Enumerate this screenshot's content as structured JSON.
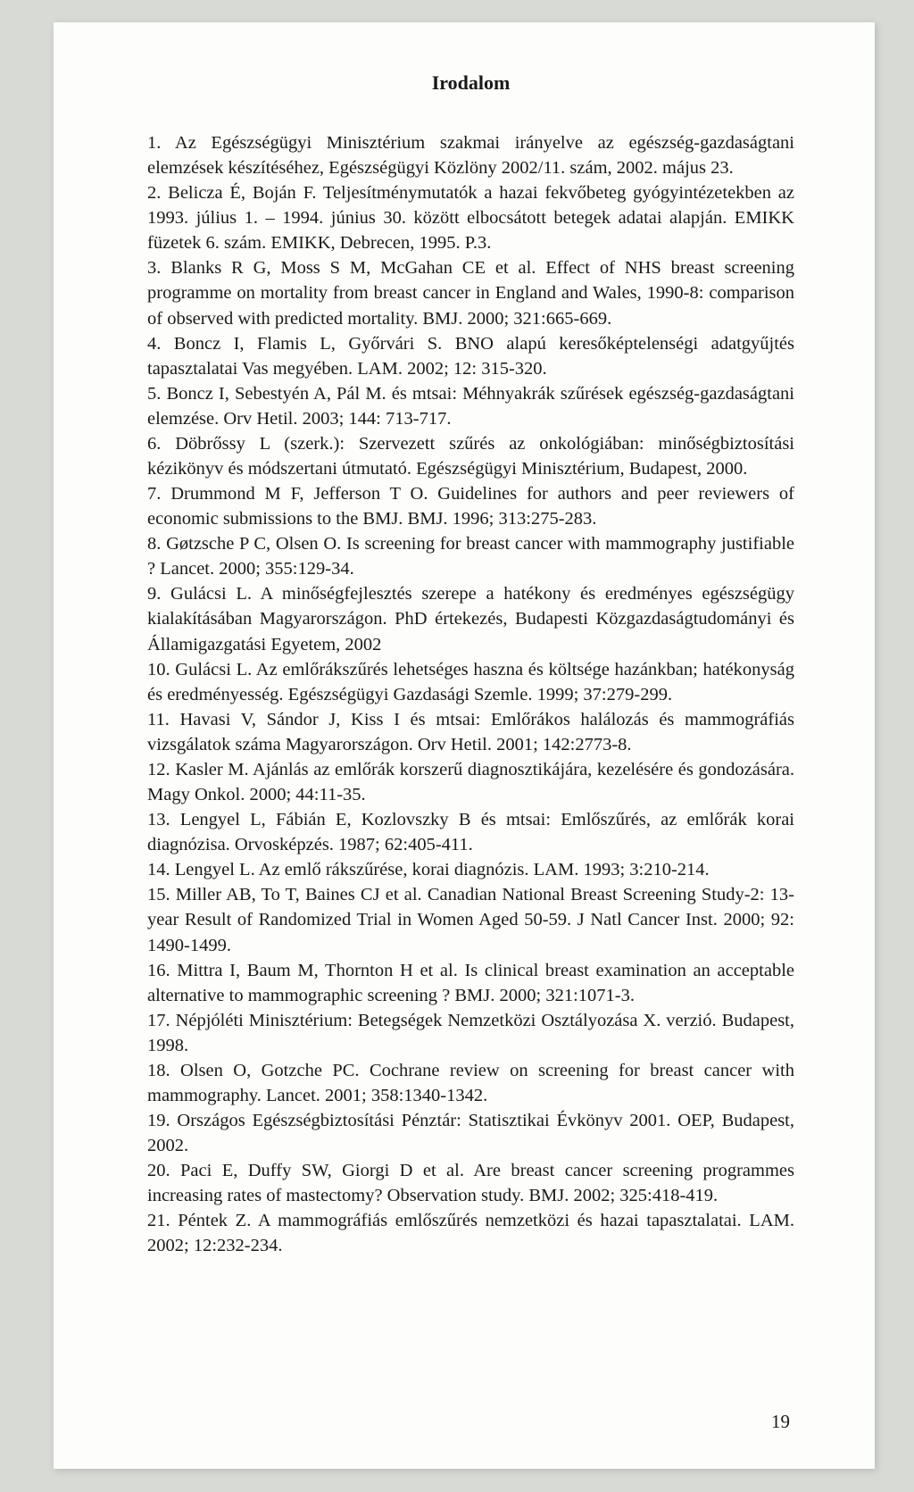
{
  "title": "Irodalom",
  "references": [
    "1. Az Egészségügyi Minisztérium szakmai irányelve az egészség-gazdaságtani elemzések készítéséhez, Egészségügyi Közlöny 2002/11. szám, 2002. május 23.",
    "2. Belicza É, Boján F. Teljesítménymutatók a hazai fekvőbeteg gyógyintézetekben az 1993. július 1. – 1994. június 30. között elbocsátott betegek adatai alapján. EMIKK füzetek 6. szám. EMIKK, Debrecen, 1995. P.3.",
    "3. Blanks R G, Moss S M, McGahan CE et al. Effect of NHS breast screening programme on mortality from breast cancer in England and Wales, 1990-8: comparison of observed with predicted mortality. BMJ. 2000; 321:665-669.",
    "4. Boncz I, Flamis L, Győrvári S. BNO alapú keresőképtelenségi adatgyűjtés tapasztalatai Vas megyében. LAM. 2002; 12: 315-320.",
    "5. Boncz I, Sebestyén A, Pál M. és mtsai: Méhnyakrák szűrések egészség-gazdaságtani elemzése. Orv Hetil. 2003; 144: 713-717.",
    "6. Döbrőssy L (szerk.): Szervezett szűrés az onkológiában: minőségbiztosítási kézikönyv és módszertani útmutató. Egészségügyi Minisztérium, Budapest, 2000.",
    "7. Drummond M F, Jefferson T O. Guidelines for authors and peer reviewers of economic submissions to the BMJ. BMJ. 1996; 313:275-283.",
    "8. Gøtzsche P C, Olsen O. Is screening for breast cancer with mammography justifiable ? Lancet. 2000; 355:129-34.",
    "9. Gulácsi L. A minőségfejlesztés szerepe a hatékony és eredményes egészségügy kialakításában Magyarországon. PhD értekezés, Budapesti Közgazdaságtudományi és Államigazgatási Egyetem, 2002",
    "10. Gulácsi L. Az emlőrákszűrés lehetséges haszna és költsége hazánkban; hatékonyság és eredményesség. Egészségügyi Gazdasági Szemle. 1999; 37:279-299.",
    "11. Havasi V, Sándor J, Kiss I és mtsai: Emlőrákos halálozás és mammográfiás vizsgálatok száma Magyarországon. Orv Hetil. 2001; 142:2773-8.",
    "12. Kasler M. Ajánlás az emlőrák korszerű diagnosztikájára, kezelésére és gondozására. Magy Onkol. 2000; 44:11-35.",
    "13. Lengyel L, Fábián E, Kozlovszky B és mtsai: Emlőszűrés, az emlőrák korai diagnózisa. Orvosképzés. 1987; 62:405-411.",
    "14. Lengyel L. Az emlő rákszűrése, korai diagnózis. LAM. 1993; 3:210-214.",
    "15. Miller AB, To T, Baines CJ et al. Canadian National Breast Screening Study-2: 13-year Result of Randomized Trial in Women Aged 50-59. J Natl Cancer Inst. 2000; 92: 1490-1499.",
    "16. Mittra I, Baum M, Thornton H et al. Is clinical breast examination an acceptable alternative to mammographic screening ? BMJ. 2000; 321:1071-3.",
    "17. Népjóléti Minisztérium: Betegségek Nemzetközi Osztályozása X. verzió. Budapest, 1998.",
    "18. Olsen O, Gotzche PC. Cochrane review on screening for breast cancer with mammography. Lancet. 2001; 358:1340-1342.",
    "19. Országos Egészségbiztosítási Pénztár: Statisztikai Évkönyv 2001. OEP, Budapest, 2002.",
    "20. Paci E, Duffy SW, Giorgi D et al. Are breast cancer screening programmes increasing rates of mastectomy? Observation study. BMJ. 2002; 325:418-419.",
    "21. Péntek Z. A mammográfiás emlőszűrés nemzetközi és hazai tapasztalatai. LAM. 2002; 12:232-234."
  ],
  "pageNumber": "19",
  "colors": {
    "pageBackground": "#fdfdfb",
    "bodyBackground": "#d8dad6",
    "text": "#1a1a1a"
  },
  "typography": {
    "titleFontSize": 22,
    "bodyFontSize": 20.5,
    "lineHeight": 1.37,
    "fontFamily": "Times New Roman"
  }
}
